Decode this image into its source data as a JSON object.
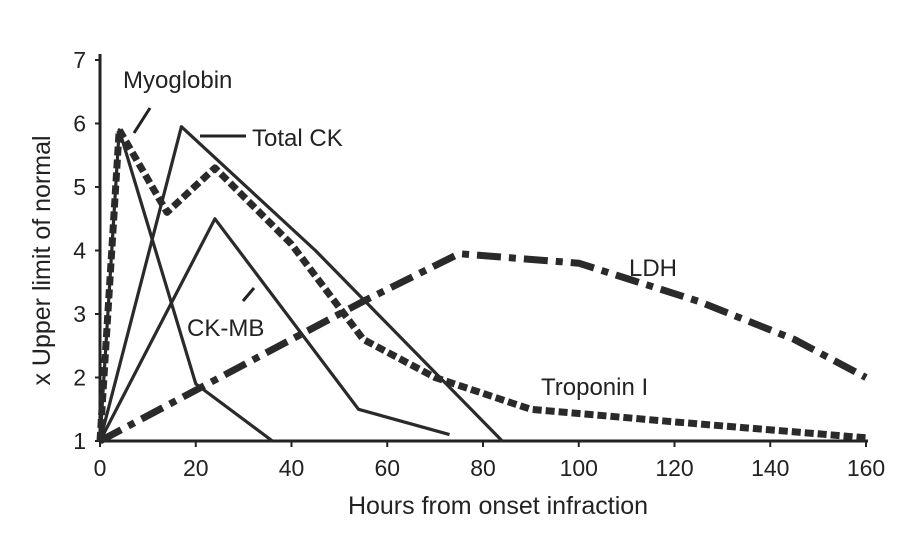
{
  "chart_data": {
    "type": "line",
    "title": "",
    "xlabel": "Hours from onset infraction",
    "ylabel": "x Upper limit of normal",
    "xlim": [
      0,
      160
    ],
    "ylim": [
      1,
      7
    ],
    "xticks": [
      0,
      20,
      40,
      60,
      80,
      100,
      120,
      140,
      160
    ],
    "yticks": [
      1,
      2,
      3,
      4,
      5,
      6,
      7
    ],
    "grid": false,
    "legend": "none (series labeled directly on the chart)",
    "series": [
      {
        "name": "Myoglobin",
        "style": "solid",
        "color": "#2a2a2a",
        "x": [
          0,
          4,
          20,
          36
        ],
        "y": [
          1,
          5.9,
          1.9,
          1
        ]
      },
      {
        "name": "Total CK",
        "style": "solid",
        "color": "#2a2a2a",
        "x": [
          0,
          17,
          45,
          84
        ],
        "y": [
          1,
          5.95,
          4.0,
          1
        ]
      },
      {
        "name": "CK-MB",
        "style": "solid",
        "color": "#2a2a2a",
        "x": [
          0,
          24,
          54,
          73
        ],
        "y": [
          1,
          4.5,
          1.5,
          1.1
        ]
      },
      {
        "name": "Troponin I",
        "style": "dashed",
        "color": "#2a2a2a",
        "x": [
          0,
          4,
          14,
          24,
          40,
          55,
          70,
          90,
          120,
          160
        ],
        "y": [
          1,
          5.9,
          4.6,
          5.3,
          4.1,
          2.6,
          2.0,
          1.5,
          1.3,
          1.05
        ]
      },
      {
        "name": "LDH",
        "style": "dashdot",
        "color": "#2a2a2a",
        "x": [
          0,
          20,
          40,
          55,
          75,
          100,
          125,
          145,
          160
        ],
        "y": [
          1,
          1.8,
          2.6,
          3.2,
          3.95,
          3.8,
          3.2,
          2.6,
          2.0
        ]
      }
    ],
    "labels": [
      {
        "text": "Myoglobin",
        "series": "Myoglobin"
      },
      {
        "text": "Total CK",
        "series": "Total CK"
      },
      {
        "text": "CK-MB",
        "series": "CK-MB"
      },
      {
        "text": "Troponin I",
        "series": "Troponin I"
      },
      {
        "text": "LDH",
        "series": "LDH"
      }
    ]
  }
}
